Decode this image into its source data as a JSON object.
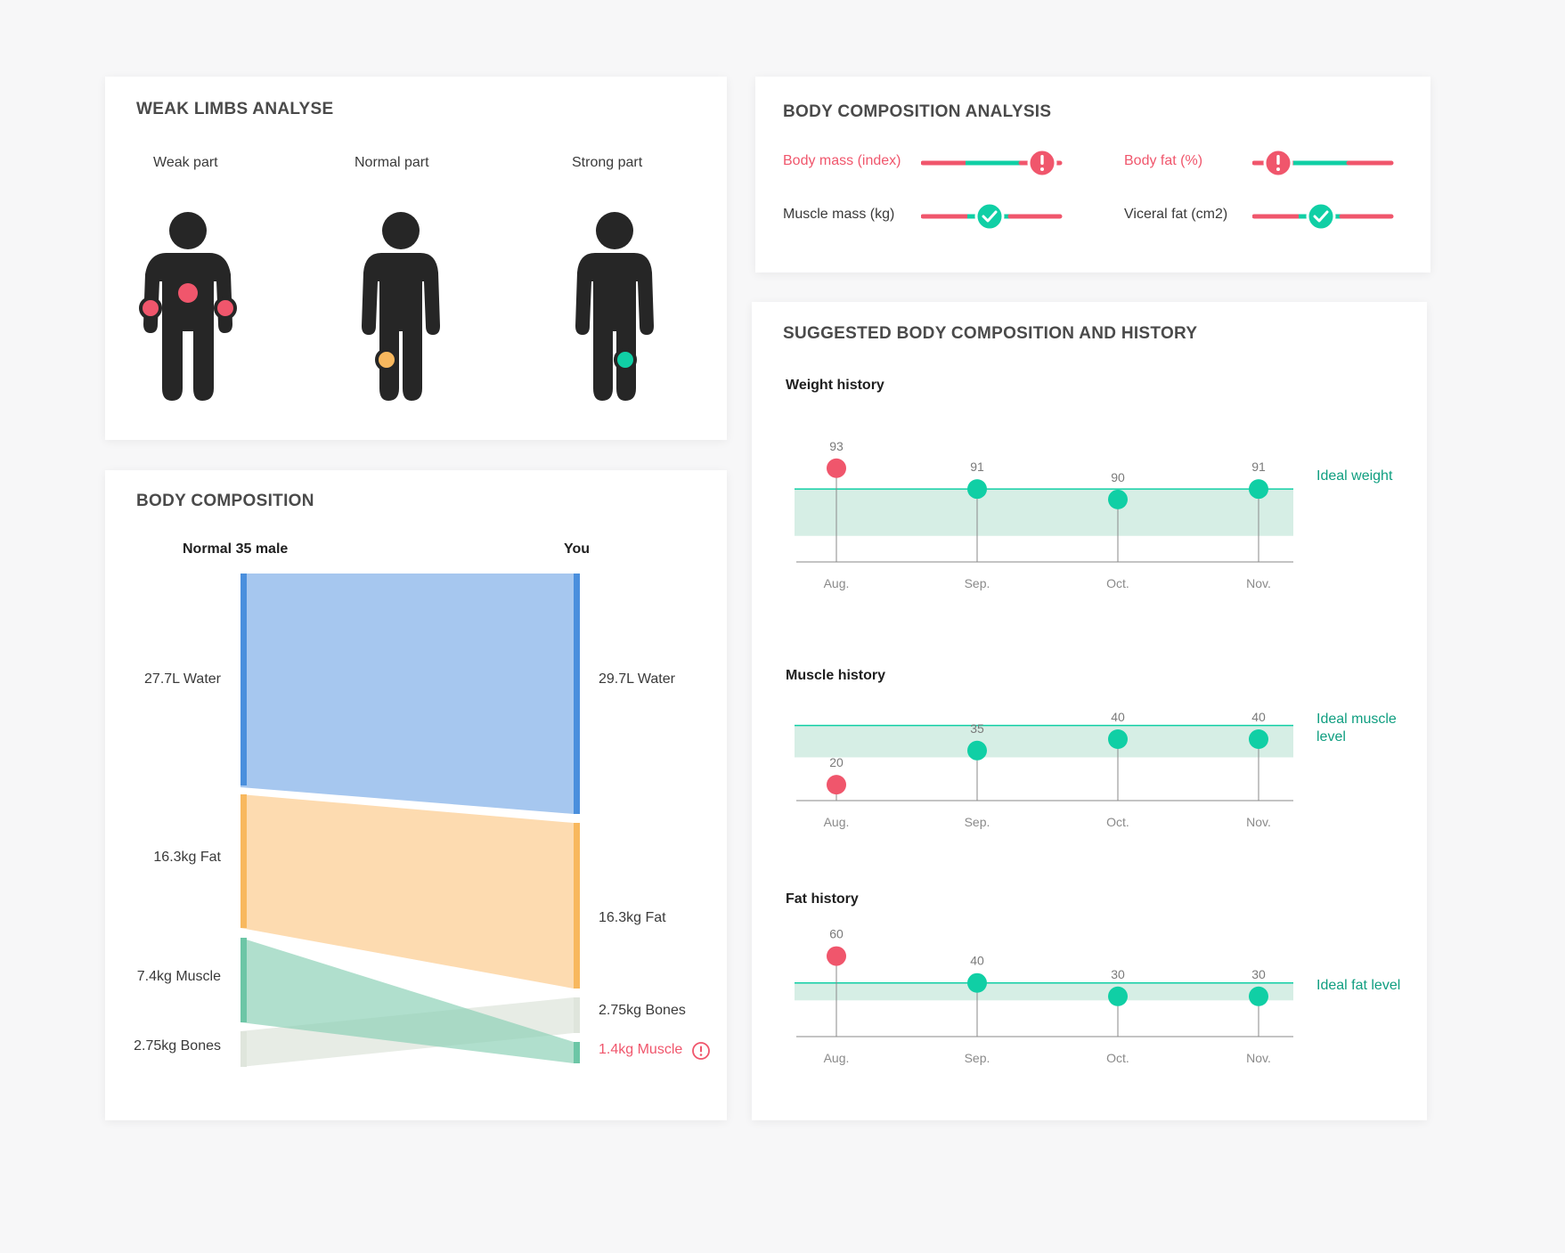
{
  "colors": {
    "warning": "#f0566c",
    "ok": "#10cfa5",
    "mid": "#f8b85e",
    "water": "#4a8fdd",
    "fat": "#f8b85e",
    "muscle": "#6cc6a6",
    "bones": "#dfe5dc",
    "band": "#d6eee5"
  },
  "weak_limbs": {
    "title": "WEAK LIMBS ANALYSE",
    "figures": [
      {
        "label": "Weak part",
        "marker_color": "#f0566c",
        "icon": "person-weak-icon"
      },
      {
        "label": "Normal part",
        "marker_color": "#f8b85e",
        "icon": "person-normal-icon"
      },
      {
        "label": "Strong part",
        "marker_color": "#10cfa5",
        "icon": "person-strong-icon"
      }
    ]
  },
  "composition_analysis": {
    "title": "BODY COMPOSITION ANALYSIS",
    "metrics": [
      {
        "label": "Body mass (index)",
        "status": "warning",
        "level": 0.88,
        "icon": "alert-icon"
      },
      {
        "label": "Body fat (%)",
        "status": "warning",
        "level": 0.18,
        "icon": "alert-icon"
      },
      {
        "label": "Muscle mass (kg)",
        "status": "ok",
        "level": 0.5,
        "icon": "check-icon"
      },
      {
        "label": "Viceral fat (cm2)",
        "status": "ok",
        "level": 0.5,
        "icon": "check-icon"
      }
    ]
  },
  "body_composition": {
    "title": "BODY COMPOSITION",
    "left_header": "Normal 35 male",
    "right_header": "You",
    "left_labels": [
      "27.7L Water",
      "16.3kg Fat",
      "7.4kg Muscle",
      "2.75kg Bones"
    ],
    "right_labels": [
      "29.7L Water",
      "16.3kg Fat",
      "2.75kg Bones",
      "1.4kg Muscle"
    ],
    "warning_icon": "alert-circle-icon"
  },
  "history": {
    "title": "SUGGESTED BODY COMPOSITION AND HISTORY",
    "charts": [
      {
        "title": "Weight history",
        "ideal_label": "Ideal weight",
        "months": [
          "Aug.",
          "Sep.",
          "Oct.",
          "Nov."
        ],
        "values": [
          93,
          91,
          90,
          91
        ],
        "status": [
          "warning",
          "ok",
          "ok",
          "ok"
        ]
      },
      {
        "title": "Muscle history",
        "ideal_label": "Ideal muscle level",
        "months": [
          "Aug.",
          "Sep.",
          "Oct.",
          "Nov."
        ],
        "values": [
          20,
          35,
          40,
          40
        ],
        "status": [
          "warning",
          "ok",
          "ok",
          "ok"
        ]
      },
      {
        "title": "Fat history",
        "ideal_label": "Ideal fat level",
        "months": [
          "Aug.",
          "Sep.",
          "Oct.",
          "Nov."
        ],
        "values": [
          60,
          40,
          30,
          30
        ],
        "status": [
          "warning",
          "ok",
          "ok",
          "ok"
        ]
      }
    ]
  },
  "chart_data": [
    {
      "type": "line",
      "title": "Weight history",
      "x": [
        "Aug.",
        "Sep.",
        "Oct.",
        "Nov."
      ],
      "series": [
        {
          "values": [
            93,
            91,
            90,
            91
          ]
        }
      ]
    },
    {
      "type": "line",
      "title": "Muscle history",
      "x": [
        "Aug.",
        "Sep.",
        "Oct.",
        "Nov."
      ],
      "series": [
        {
          "values": [
            20,
            35,
            40,
            40
          ]
        }
      ]
    },
    {
      "type": "line",
      "title": "Fat history",
      "x": [
        "Aug.",
        "Sep.",
        "Oct.",
        "Nov."
      ],
      "series": [
        {
          "values": [
            60,
            40,
            30,
            30
          ]
        }
      ]
    }
  ]
}
